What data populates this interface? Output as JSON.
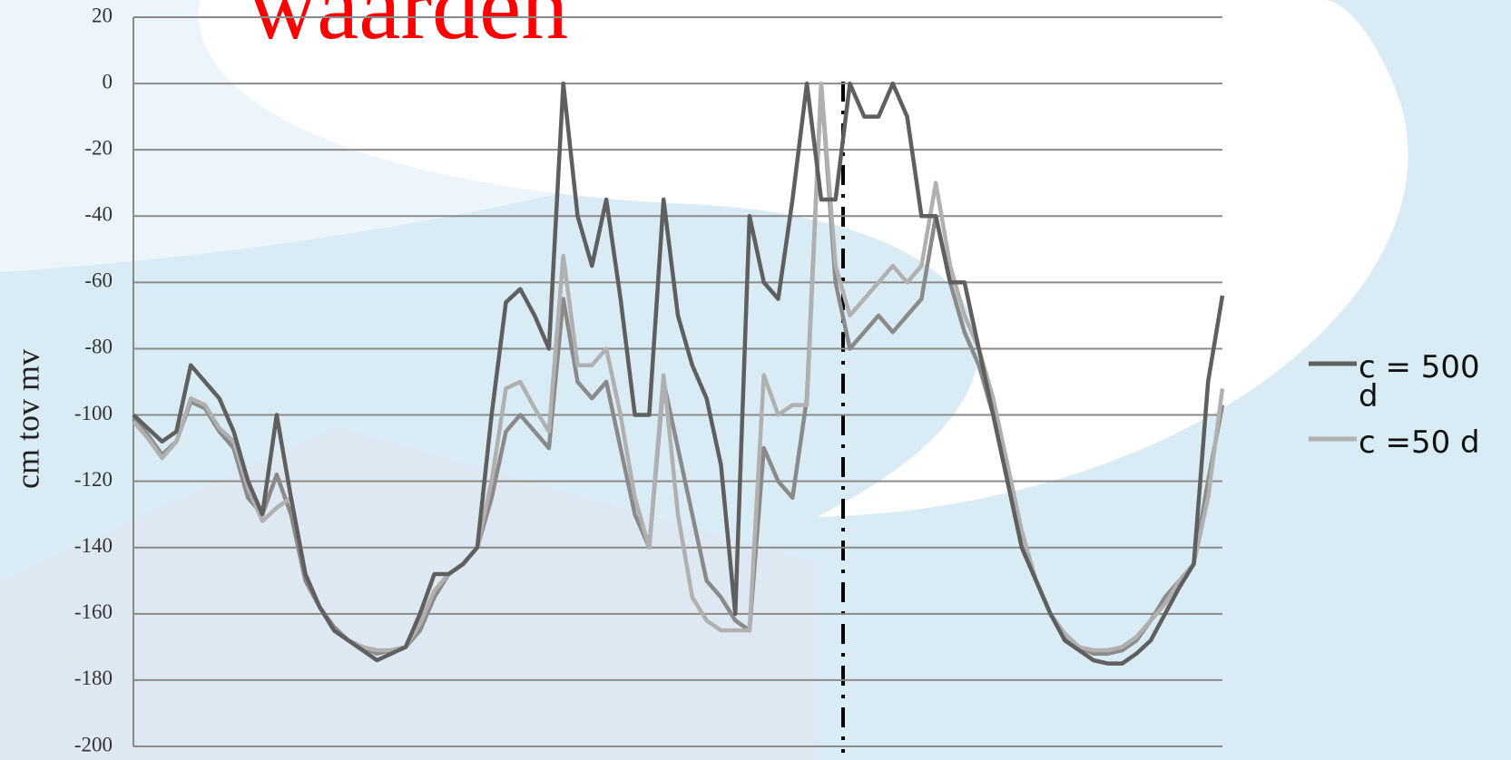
{
  "chart_data": {
    "type": "line",
    "title": "waarden",
    "y_label": "cm tov mv",
    "ylim": [
      -200,
      20
    ],
    "yticks": [
      -200,
      -180,
      -160,
      -140,
      -120,
      -100,
      -80,
      -60,
      -40,
      -20,
      0,
      20
    ],
    "grid": true,
    "series": [
      {
        "name": "c = 500 d",
        "color": "#5f5f5f",
        "values": [
          -100,
          -104,
          -108,
          -105,
          -85,
          -90,
          -95,
          -105,
          -120,
          -130,
          -100,
          -125,
          -148,
          -158,
          -165,
          -168,
          -171,
          -174,
          -172,
          -170,
          -160,
          -148,
          -148,
          -145,
          -140,
          -100,
          -66,
          -62,
          -70,
          -80,
          0,
          -40,
          -55,
          -35,
          -65,
          -100,
          -100,
          -35,
          -70,
          -85,
          -95,
          -115,
          -160,
          -40,
          -60,
          -65,
          -35,
          0,
          -35,
          -35,
          0,
          -10,
          -10,
          0,
          -10,
          -40,
          -40,
          -60,
          -60,
          -80,
          -100,
          -120,
          -140,
          -150,
          -160,
          -168,
          -171,
          -174,
          -175,
          -175,
          -172,
          -168,
          -160,
          -152,
          -145,
          -90,
          -64
        ]
      },
      {
        "name": "c =50 d",
        "color": "#b0b0b0",
        "values": [
          -102,
          -107,
          -113,
          -108,
          -95,
          -97,
          -104,
          -108,
          -122,
          -132,
          -128,
          -125,
          -148,
          -158,
          -165,
          -168,
          -170,
          -171,
          -171,
          -170,
          -163,
          -153,
          -148,
          -145,
          -140,
          -120,
          -92,
          -90,
          -98,
          -105,
          -52,
          -85,
          -85,
          -80,
          -100,
          -125,
          -140,
          -88,
          -130,
          -155,
          -162,
          -165,
          -165,
          -165,
          -88,
          -100,
          -97,
          -97,
          0,
          -55,
          -70,
          -65,
          -60,
          -55,
          -60,
          -55,
          -30,
          -55,
          -70,
          -80,
          -95,
          -115,
          -135,
          -150,
          -160,
          -166,
          -170,
          -171,
          -171,
          -170,
          -167,
          -162,
          -157,
          -150,
          -145,
          -125,
          -92
        ]
      },
      {
        "color": "#8a8a8a",
        "values": [
          -101,
          -106,
          -112,
          -108,
          -96,
          -98,
          -105,
          -110,
          -125,
          -130,
          -118,
          -130,
          -150,
          -158,
          -164,
          -168,
          -170,
          -172,
          -171,
          -170,
          -165,
          -155,
          -148,
          -145,
          -140,
          -125,
          -105,
          -100,
          -105,
          -110,
          -65,
          -90,
          -95,
          -90,
          -110,
          -130,
          -140,
          -90,
          -110,
          -130,
          -150,
          -155,
          -162,
          -165,
          -110,
          -120,
          -125,
          -95,
          0,
          -60,
          -80,
          -75,
          -70,
          -75,
          -70,
          -65,
          -40,
          -60,
          -75,
          -85,
          -100,
          -120,
          -140,
          -150,
          -160,
          -167,
          -170,
          -172,
          -172,
          -171,
          -168,
          -162,
          -155,
          -150,
          -145,
          -120,
          -97
        ]
      }
    ]
  }
}
